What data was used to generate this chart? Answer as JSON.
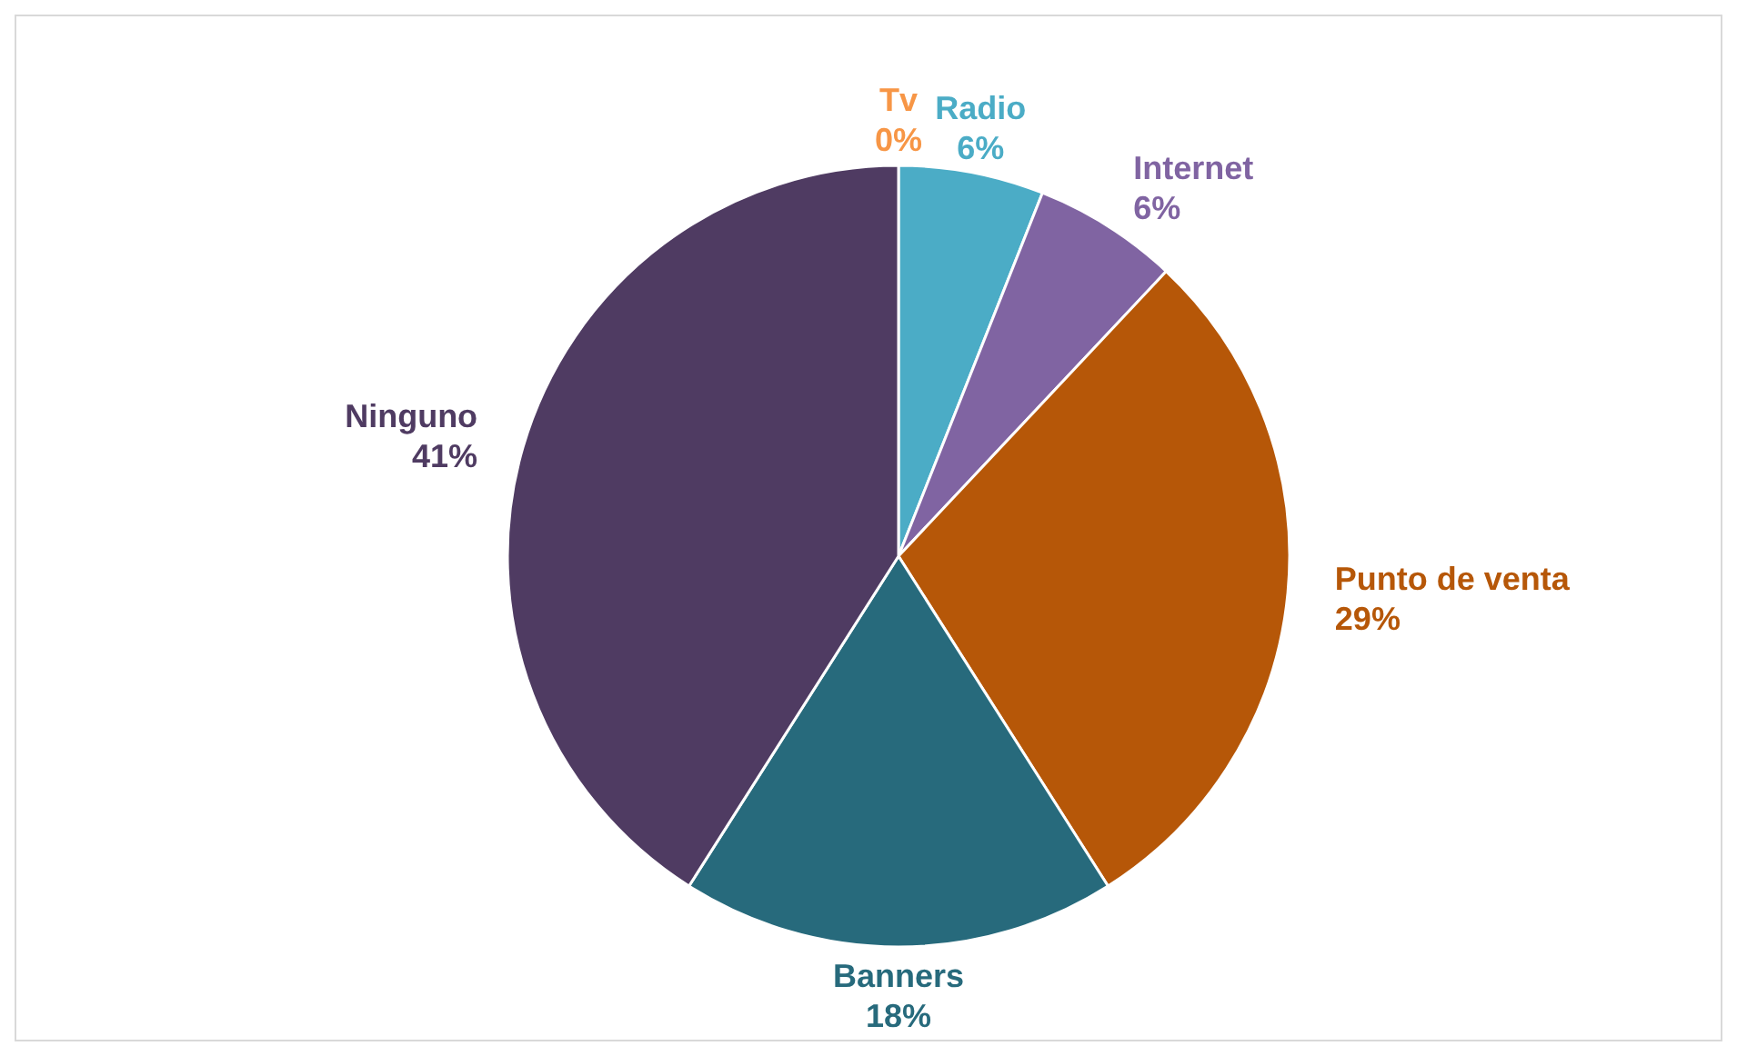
{
  "chart_data": {
    "type": "pie",
    "categories": [
      "Tv",
      "Radio",
      "Internet",
      "Punto de venta",
      "Banners",
      "Ninguno"
    ],
    "values": [
      0,
      6,
      6,
      29,
      18,
      41
    ],
    "colors": [
      "#f79646",
      "#4bacc6",
      "#8064a2",
      "#b65708",
      "#276a7c",
      "#4f3b62"
    ],
    "value_labels": [
      "0%",
      "6%",
      "6%",
      "29%",
      "18%",
      "41%"
    ],
    "legend": false
  }
}
